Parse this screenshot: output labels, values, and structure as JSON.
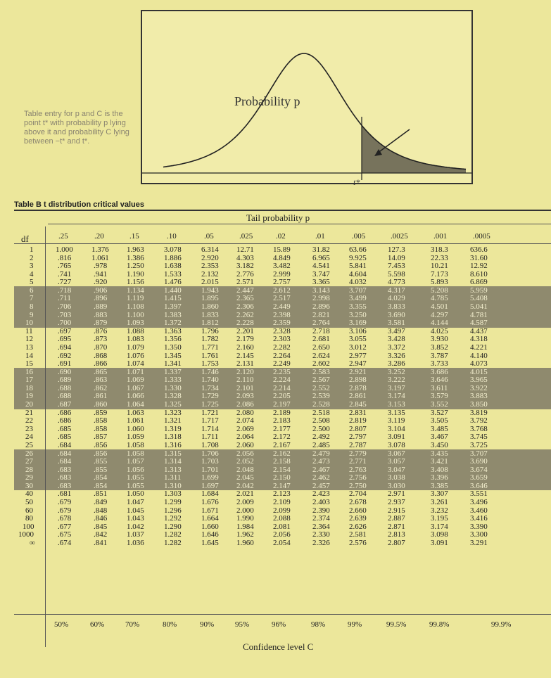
{
  "figure": {
    "probability_label": "Probability p",
    "tstar_label": "t*",
    "caption": "Table entry for p and C is the point t* with probability p lying above it and probability C lying between −t* and t*."
  },
  "table": {
    "title": "Table B   t distribution critical values",
    "tail_header": "Tail probability p",
    "df_header": "df",
    "confidence_header": "Confidence level C",
    "tail_probs": [
      ".25",
      ".20",
      ".15",
      ".10",
      ".05",
      ".025",
      ".02",
      ".01",
      ".005",
      ".0025",
      ".001",
      ".0005"
    ],
    "confidence_levels": [
      "50%",
      "60%",
      "70%",
      "80%",
      "90%",
      "95%",
      "96%",
      "98%",
      "99%",
      "99.5%",
      "99.8%",
      "99.9%"
    ],
    "rows": [
      {
        "df": "1",
        "v": [
          "1.000",
          "1.376",
          "1.963",
          "3.078",
          "6.314",
          "12.71",
          "15.89",
          "31.82",
          "63.66",
          "127.3",
          "318.3",
          "636.6"
        ]
      },
      {
        "df": "2",
        "v": [
          ".816",
          "1.061",
          "1.386",
          "1.886",
          "2.920",
          "4.303",
          "4.849",
          "6.965",
          "9.925",
          "14.09",
          "22.33",
          "31.60"
        ]
      },
      {
        "df": "3",
        "v": [
          ".765",
          ".978",
          "1.250",
          "1.638",
          "2.353",
          "3.182",
          "3.482",
          "4.541",
          "5.841",
          "7.453",
          "10.21",
          "12.92"
        ]
      },
      {
        "df": "4",
        "v": [
          ".741",
          ".941",
          "1.190",
          "1.533",
          "2.132",
          "2.776",
          "2.999",
          "3.747",
          "4.604",
          "5.598",
          "7.173",
          "8.610"
        ]
      },
      {
        "df": "5",
        "v": [
          ".727",
          ".920",
          "1.156",
          "1.476",
          "2.015",
          "2.571",
          "2.757",
          "3.365",
          "4.032",
          "4.773",
          "5.893",
          "6.869"
        ]
      },
      {
        "df": "6",
        "v": [
          ".718",
          ".906",
          "1.134",
          "1.440",
          "1.943",
          "2.447",
          "2.612",
          "3.143",
          "3.707",
          "4.317",
          "5.208",
          "5.959"
        ]
      },
      {
        "df": "7",
        "v": [
          ".711",
          ".896",
          "1.119",
          "1.415",
          "1.895",
          "2.365",
          "2.517",
          "2.998",
          "3.499",
          "4.029",
          "4.785",
          "5.408"
        ]
      },
      {
        "df": "8",
        "v": [
          ".706",
          ".889",
          "1.108",
          "1.397",
          "1.860",
          "2.306",
          "2.449",
          "2.896",
          "3.355",
          "3.833",
          "4.501",
          "5.041"
        ]
      },
      {
        "df": "9",
        "v": [
          ".703",
          ".883",
          "1.100",
          "1.383",
          "1.833",
          "2.262",
          "2.398",
          "2.821",
          "3.250",
          "3.690",
          "4.297",
          "4.781"
        ]
      },
      {
        "df": "10",
        "v": [
          ".700",
          ".879",
          "1.093",
          "1.372",
          "1.812",
          "2.228",
          "2.359",
          "2.764",
          "3.169",
          "3.581",
          "4.144",
          "4.587"
        ]
      },
      {
        "df": "11",
        "v": [
          ".697",
          ".876",
          "1.088",
          "1.363",
          "1.796",
          "2.201",
          "2.328",
          "2.718",
          "3.106",
          "3.497",
          "4.025",
          "4.437"
        ]
      },
      {
        "df": "12",
        "v": [
          ".695",
          ".873",
          "1.083",
          "1.356",
          "1.782",
          "2.179",
          "2.303",
          "2.681",
          "3.055",
          "3.428",
          "3.930",
          "4.318"
        ]
      },
      {
        "df": "13",
        "v": [
          ".694",
          ".870",
          "1.079",
          "1.350",
          "1.771",
          "2.160",
          "2.282",
          "2.650",
          "3.012",
          "3.372",
          "3.852",
          "4.221"
        ]
      },
      {
        "df": "14",
        "v": [
          ".692",
          ".868",
          "1.076",
          "1.345",
          "1.761",
          "2.145",
          "2.264",
          "2.624",
          "2.977",
          "3.326",
          "3.787",
          "4.140"
        ]
      },
      {
        "df": "15",
        "v": [
          ".691",
          ".866",
          "1.074",
          "1.341",
          "1.753",
          "2.131",
          "2.249",
          "2.602",
          "2.947",
          "3.286",
          "3.733",
          "4.073"
        ]
      },
      {
        "df": "16",
        "v": [
          ".690",
          ".865",
          "1.071",
          "1.337",
          "1.746",
          "2.120",
          "2.235",
          "2.583",
          "2.921",
          "3.252",
          "3.686",
          "4.015"
        ]
      },
      {
        "df": "17",
        "v": [
          ".689",
          ".863",
          "1.069",
          "1.333",
          "1.740",
          "2.110",
          "2.224",
          "2.567",
          "2.898",
          "3.222",
          "3.646",
          "3.965"
        ]
      },
      {
        "df": "18",
        "v": [
          ".688",
          ".862",
          "1.067",
          "1.330",
          "1.734",
          "2.101",
          "2.214",
          "2.552",
          "2.878",
          "3.197",
          "3.611",
          "3.922"
        ]
      },
      {
        "df": "19",
        "v": [
          ".688",
          ".861",
          "1.066",
          "1.328",
          "1.729",
          "2.093",
          "2.205",
          "2.539",
          "2.861",
          "3.174",
          "3.579",
          "3.883"
        ]
      },
      {
        "df": "20",
        "v": [
          ".687",
          ".860",
          "1.064",
          "1.325",
          "1.725",
          "2.086",
          "2.197",
          "2.528",
          "2.845",
          "3.153",
          "3.552",
          "3.850"
        ]
      },
      {
        "df": "21",
        "v": [
          ".686",
          ".859",
          "1.063",
          "1.323",
          "1.721",
          "2.080",
          "2.189",
          "2.518",
          "2.831",
          "3.135",
          "3.527",
          "3.819"
        ]
      },
      {
        "df": "22",
        "v": [
          ".686",
          ".858",
          "1.061",
          "1.321",
          "1.717",
          "2.074",
          "2.183",
          "2.508",
          "2.819",
          "3.119",
          "3.505",
          "3.792"
        ]
      },
      {
        "df": "23",
        "v": [
          ".685",
          ".858",
          "1.060",
          "1.319",
          "1.714",
          "2.069",
          "2.177",
          "2.500",
          "2.807",
          "3.104",
          "3.485",
          "3.768"
        ]
      },
      {
        "df": "24",
        "v": [
          ".685",
          ".857",
          "1.059",
          "1.318",
          "1.711",
          "2.064",
          "2.172",
          "2.492",
          "2.797",
          "3.091",
          "3.467",
          "3.745"
        ]
      },
      {
        "df": "25",
        "v": [
          ".684",
          ".856",
          "1.058",
          "1.316",
          "1.708",
          "2.060",
          "2.167",
          "2.485",
          "2.787",
          "3.078",
          "3.450",
          "3.725"
        ]
      },
      {
        "df": "26",
        "v": [
          ".684",
          ".856",
          "1.058",
          "1.315",
          "1.706",
          "2.056",
          "2.162",
          "2.479",
          "2.779",
          "3.067",
          "3.435",
          "3.707"
        ]
      },
      {
        "df": "27",
        "v": [
          ".684",
          ".855",
          "1.057",
          "1.314",
          "1.703",
          "2.052",
          "2.158",
          "2.473",
          "2.771",
          "3.057",
          "3.421",
          "3.690"
        ]
      },
      {
        "df": "28",
        "v": [
          ".683",
          ".855",
          "1.056",
          "1.313",
          "1.701",
          "2.048",
          "2.154",
          "2.467",
          "2.763",
          "3.047",
          "3.408",
          "3.674"
        ]
      },
      {
        "df": "29",
        "v": [
          ".683",
          ".854",
          "1.055",
          "1.311",
          "1.699",
          "2.045",
          "2.150",
          "2.462",
          "2.756",
          "3.038",
          "3.396",
          "3.659"
        ]
      },
      {
        "df": "30",
        "v": [
          ".683",
          ".854",
          "1.055",
          "1.310",
          "1.697",
          "2.042",
          "2.147",
          "2.457",
          "2.750",
          "3.030",
          "3.385",
          "3.646"
        ]
      },
      {
        "df": "40",
        "v": [
          ".681",
          ".851",
          "1.050",
          "1.303",
          "1.684",
          "2.021",
          "2.123",
          "2.423",
          "2.704",
          "2.971",
          "3.307",
          "3.551"
        ]
      },
      {
        "df": "50",
        "v": [
          ".679",
          ".849",
          "1.047",
          "1.299",
          "1.676",
          "2.009",
          "2.109",
          "2.403",
          "2.678",
          "2.937",
          "3.261",
          "3.496"
        ]
      },
      {
        "df": "60",
        "v": [
          ".679",
          ".848",
          "1.045",
          "1.296",
          "1.671",
          "2.000",
          "2.099",
          "2.390",
          "2.660",
          "2.915",
          "3.232",
          "3.460"
        ]
      },
      {
        "df": "80",
        "v": [
          ".678",
          ".846",
          "1.043",
          "1.292",
          "1.664",
          "1.990",
          "2.088",
          "2.374",
          "2.639",
          "2.887",
          "3.195",
          "3.416"
        ]
      },
      {
        "df": "100",
        "v": [
          ".677",
          ".845",
          "1.042",
          "1.290",
          "1.660",
          "1.984",
          "2.081",
          "2.364",
          "2.626",
          "2.871",
          "3.174",
          "3.390"
        ]
      },
      {
        "df": "1000",
        "v": [
          ".675",
          ".842",
          "1.037",
          "1.282",
          "1.646",
          "1.962",
          "2.056",
          "2.330",
          "2.581",
          "2.813",
          "3.098",
          "3.300"
        ]
      },
      {
        "df": "∞",
        "v": [
          ".674",
          ".841",
          "1.036",
          "1.282",
          "1.645",
          "1.960",
          "2.054",
          "2.326",
          "2.576",
          "2.807",
          "3.091",
          "3.291"
        ]
      }
    ],
    "shaded_row_groups": [
      [
        6,
        10
      ],
      [
        16,
        20
      ],
      [
        26,
        30
      ]
    ],
    "shade_color": "#8f8a6e",
    "paper_color": "#ece79b"
  }
}
